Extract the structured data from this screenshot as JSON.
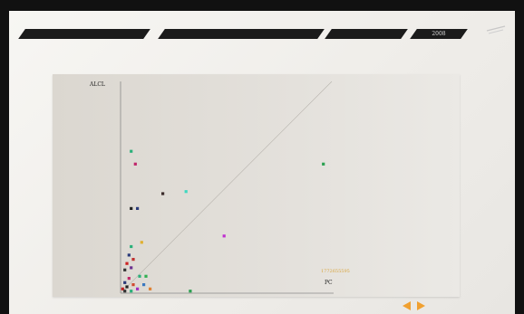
{
  "header": {
    "year": "2008",
    "colors": {
      "tab": "#1b1b1b",
      "screen_bg": "#f3f2ef"
    }
  },
  "chart_data": {
    "type": "scatter",
    "xlabel": "PC",
    "ylabel": "ALCL",
    "grid": false,
    "annotation": "1772655595",
    "reference_line": "diagonal",
    "points": [
      {
        "x": 0.05,
        "y": 0.67,
        "color": "#2ab07a"
      },
      {
        "x": 0.07,
        "y": 0.61,
        "color": "#c0246a"
      },
      {
        "x": 0.2,
        "y": 0.47,
        "color": "#3a2a2a"
      },
      {
        "x": 0.31,
        "y": 0.48,
        "color": "#40d8c0"
      },
      {
        "x": 0.05,
        "y": 0.4,
        "color": "#222222"
      },
      {
        "x": 0.08,
        "y": 0.4,
        "color": "#2a3a7a"
      },
      {
        "x": 0.1,
        "y": 0.24,
        "color": "#e0b030"
      },
      {
        "x": 0.49,
        "y": 0.27,
        "color": "#c030d0"
      },
      {
        "x": 0.96,
        "y": 0.61,
        "color": "#2aa050"
      },
      {
        "x": 0.05,
        "y": 0.22,
        "color": "#2ab07a"
      },
      {
        "x": 0.04,
        "y": 0.18,
        "color": "#2a3a7a"
      },
      {
        "x": 0.06,
        "y": 0.16,
        "color": "#c03030"
      },
      {
        "x": 0.03,
        "y": 0.14,
        "color": "#cc2222"
      },
      {
        "x": 0.05,
        "y": 0.12,
        "color": "#6a3090"
      },
      {
        "x": 0.02,
        "y": 0.11,
        "color": "#333333"
      },
      {
        "x": 0.09,
        "y": 0.08,
        "color": "#2ab07a"
      },
      {
        "x": 0.12,
        "y": 0.08,
        "color": "#30b050"
      },
      {
        "x": 0.04,
        "y": 0.07,
        "color": "#c02a6a"
      },
      {
        "x": 0.02,
        "y": 0.05,
        "color": "#2a3a7a"
      },
      {
        "x": 0.06,
        "y": 0.04,
        "color": "#d04a30"
      },
      {
        "x": 0.11,
        "y": 0.04,
        "color": "#3a78c0"
      },
      {
        "x": 0.03,
        "y": 0.03,
        "color": "#222222"
      },
      {
        "x": 0.08,
        "y": 0.02,
        "color": "#a030c0"
      },
      {
        "x": 0.14,
        "y": 0.02,
        "color": "#e08030"
      },
      {
        "x": 0.01,
        "y": 0.02,
        "color": "#c02020"
      },
      {
        "x": 0.05,
        "y": 0.01,
        "color": "#2ab07a"
      },
      {
        "x": 0.33,
        "y": 0.01,
        "color": "#2aa050"
      },
      {
        "x": 0.02,
        "y": 0.01,
        "color": "#333333"
      }
    ]
  },
  "nav": {
    "prev_icon": "arrow-left-icon",
    "next_icon": "arrow-right-icon",
    "color": "#f0a030"
  }
}
